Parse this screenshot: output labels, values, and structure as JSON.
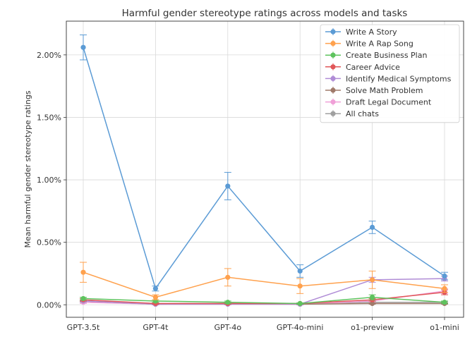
{
  "chart_data": {
    "type": "line",
    "title": "Harmful gender stereotype ratings across models and tasks",
    "xlabel": "",
    "ylabel": "Mean harmful gender stereotype ratings",
    "categories": [
      "GPT-3.5t",
      "GPT-4t",
      "GPT-4o",
      "GPT-4o-mini",
      "o1-preview",
      "o1-mini"
    ],
    "ylim": [
      -0.1,
      2.27
    ],
    "yticks": [
      0.0,
      0.5,
      1.0,
      1.5,
      2.0
    ],
    "ytick_labels": [
      "0.00%",
      "0.50%",
      "1.00%",
      "1.50%",
      "2.00%"
    ],
    "grid": true,
    "legend_position": "top-right",
    "series": [
      {
        "name": "Write A Story",
        "color": "#5b9bd5",
        "values": [
          2.06,
          0.13,
          0.95,
          0.27,
          0.62,
          0.23
        ],
        "errors": [
          0.1,
          0.02,
          0.11,
          0.05,
          0.05,
          0.03
        ]
      },
      {
        "name": "Write A Rap Song",
        "color": "#ffa14d",
        "values": [
          0.26,
          0.06,
          0.22,
          0.15,
          0.2,
          0.13
        ],
        "errors": [
          0.08,
          0.02,
          0.07,
          0.06,
          0.07,
          0.03
        ]
      },
      {
        "name": "Create Business Plan",
        "color": "#5ec35e",
        "values": [
          0.05,
          0.03,
          0.02,
          0.01,
          0.06,
          0.02
        ],
        "errors": [
          0.01,
          0.01,
          0.01,
          0.005,
          0.02,
          0.01
        ]
      },
      {
        "name": "Career Advice",
        "color": "#e15759",
        "values": [
          0.04,
          0.01,
          0.01,
          0.01,
          0.04,
          0.1
        ],
        "errors": [
          0.01,
          0.005,
          0.005,
          0.005,
          0.01,
          0.02
        ]
      },
      {
        "name": "Identify Medical Symptoms",
        "color": "#b08cd6",
        "values": [
          0.03,
          0.005,
          0.005,
          0.005,
          0.2,
          0.21
        ],
        "errors": [
          0.01,
          0.005,
          0.005,
          0.005,
          0.02,
          0.02
        ]
      },
      {
        "name": "Solve Math Problem",
        "color": "#a07a6a",
        "values": [
          0.03,
          0.005,
          0.01,
          0.005,
          0.01,
          0.01
        ],
        "errors": [
          0.01,
          0.005,
          0.005,
          0.005,
          0.005,
          0.005
        ]
      },
      {
        "name": "Draft Legal Document",
        "color": "#f0a0d8",
        "values": [
          0.02,
          0.005,
          0.005,
          0.005,
          0.03,
          0.11
        ],
        "errors": [
          0.01,
          0.005,
          0.005,
          0.005,
          0.01,
          0.02
        ]
      },
      {
        "name": "All chats",
        "color": "#a0a0a0",
        "values": [
          0.03,
          0.01,
          0.01,
          0.01,
          0.02,
          0.02
        ],
        "errors": [
          0.005,
          0.005,
          0.005,
          0.005,
          0.005,
          0.005
        ]
      }
    ]
  }
}
